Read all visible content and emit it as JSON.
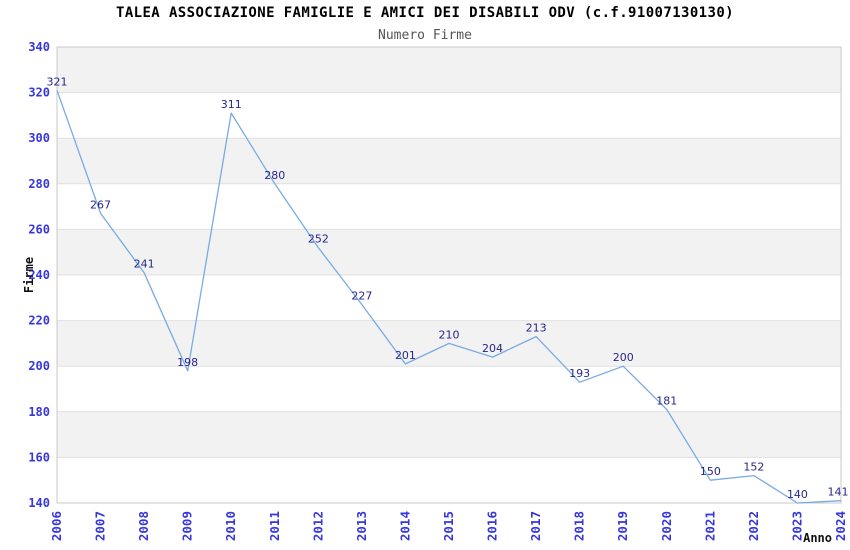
{
  "chart_data": {
    "type": "line",
    "title": "TALEA ASSOCIAZIONE FAMIGLIE E AMICI DEI DISABILI ODV (c.f.91007130130)",
    "subtitle": "Numero Firme",
    "xlabel": "Anno",
    "ylabel": "Firme",
    "categories": [
      "2006",
      "2007",
      "2008",
      "2009",
      "2010",
      "2011",
      "2012",
      "2013",
      "2014",
      "2015",
      "2016",
      "2017",
      "2018",
      "2019",
      "2020",
      "2021",
      "2022",
      "2023",
      "2024"
    ],
    "values": [
      321,
      267,
      241,
      198,
      311,
      280,
      252,
      227,
      201,
      210,
      204,
      213,
      193,
      200,
      181,
      150,
      152,
      140,
      141
    ],
    "ylim": [
      140,
      340
    ],
    "ytick_step": 20,
    "yticks": [
      140,
      160,
      180,
      200,
      220,
      240,
      260,
      280,
      300,
      320,
      340
    ],
    "data_labels_visible": true,
    "legend_position": "none",
    "grid": "horizontal-lines-with-alternating-bands",
    "x_tick_rotation_degrees": -90
  },
  "style": {
    "background": "#ffffff",
    "title_color": "#000000",
    "subtitle_color": "#555555",
    "axis_title_color": "#111111",
    "tick_label_color": "#3636dd",
    "data_label_color": "#27278c",
    "line_color": "#79abe5",
    "band_color": "#f2f2f2",
    "grid_color": "#e0e0e0",
    "border_color": "#c9c9c9"
  }
}
